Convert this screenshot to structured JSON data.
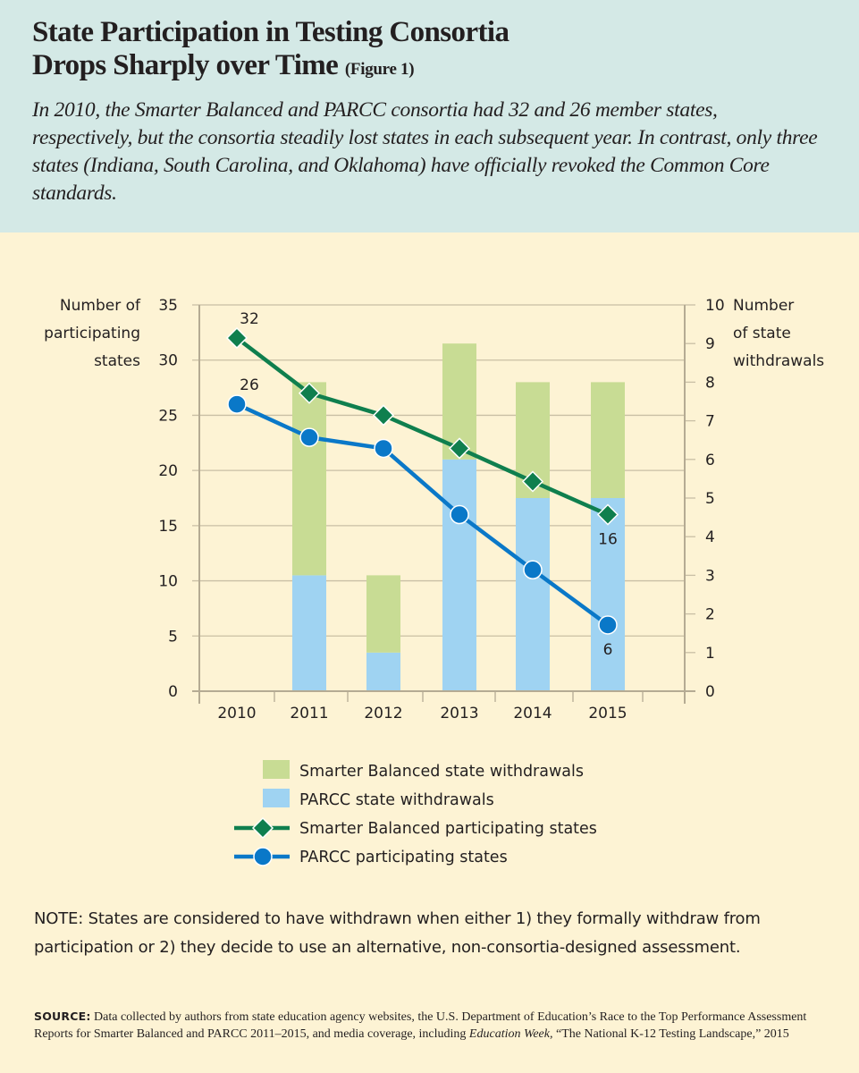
{
  "header": {
    "title_line1": "State Participation in Testing Consortia",
    "title_line2": "Drops Sharply over Time",
    "figure_label": "(Figure 1)",
    "subtitle": "In 2010, the Smarter Balanced and PARCC consortia had 32 and 26 member states, respectively, but the consortia steadily lost states in each subsequent year. In contrast, only three states (Indiana, South Carolina, and Oklahoma) have officially revoked the Common Core standards."
  },
  "colors": {
    "header_bg": "#d4e9e6",
    "body_bg": "#fdf3d4",
    "sb_bar": "#c8dc94",
    "parcc_bar": "#9fd3f2",
    "sb_line": "#0f7f4e",
    "parcc_line": "#0a78c8",
    "grid": "#c9bfa5"
  },
  "chart_data": {
    "type": "bar+line",
    "title": "State Participation in Testing Consortia Drops Sharply over Time",
    "categories": [
      "2010",
      "2011",
      "2012",
      "2013",
      "2014",
      "2015"
    ],
    "left_axis": {
      "label_lines": [
        "Number of",
        "participating",
        "states"
      ],
      "ylim": [
        0,
        35
      ],
      "ticks": [
        "0",
        "5",
        "10",
        "15",
        "20",
        "25",
        "30",
        "35"
      ]
    },
    "right_axis": {
      "label_lines": [
        "Number",
        "of state",
        "withdrawals"
      ],
      "ylim": [
        0,
        10
      ],
      "ticks": [
        "0",
        "1",
        "2",
        "3",
        "4",
        "5",
        "6",
        "7",
        "8",
        "9",
        "10"
      ]
    },
    "grid": true,
    "bar_series": [
      {
        "name": "PARCC state withdrawals",
        "axis": "right",
        "stack_order": 1,
        "values": [
          0,
          3,
          1,
          6,
          5,
          5
        ]
      },
      {
        "name": "Smarter Balanced state withdrawals",
        "axis": "right",
        "stack_order": 2,
        "values": [
          0,
          5,
          2,
          3,
          3,
          3
        ]
      }
    ],
    "line_series": [
      {
        "name": "Smarter Balanced participating states",
        "axis": "left",
        "marker": "diamond",
        "values": [
          32,
          27,
          25,
          22,
          19,
          16
        ]
      },
      {
        "name": "PARCC participating states",
        "axis": "left",
        "marker": "circle",
        "values": [
          26,
          23,
          22,
          16,
          11,
          6
        ]
      }
    ],
    "annotations": [
      {
        "series": "Smarter Balanced participating states",
        "category": "2010",
        "text": "32",
        "position": "above"
      },
      {
        "series": "PARCC participating states",
        "category": "2010",
        "text": "26",
        "position": "above"
      },
      {
        "series": "Smarter Balanced participating states",
        "category": "2015",
        "text": "16",
        "position": "below"
      },
      {
        "series": "PARCC participating states",
        "category": "2015",
        "text": "6",
        "position": "below"
      }
    ],
    "legend": {
      "placement": "bottom-center",
      "entries": [
        {
          "label": "Smarter Balanced state withdrawals",
          "kind": "swatch",
          "color_key": "sb_bar"
        },
        {
          "label": "PARCC state withdrawals",
          "kind": "swatch",
          "color_key": "parcc_bar"
        },
        {
          "label": "Smarter Balanced participating states",
          "kind": "line-diamond",
          "color_key": "sb_line"
        },
        {
          "label": "PARCC participating states",
          "kind": "line-circle",
          "color_key": "parcc_line"
        }
      ]
    }
  },
  "note": "NOTE: States are considered to have withdrawn when either 1) they formally withdraw from participation or 2) they decide to use an alternative, non-consortia-designed assessment.",
  "source": {
    "label": "SOURCE:",
    "text_before": " Data collected by authors from state education agency websites, the U.S. Department of Education’s Race to the Top Performance Assessment Reports for Smarter Balanced and PARCC 2011–2015, and media coverage, including ",
    "italic": "Education Week,",
    "text_after": " “The National K-12 Testing Landscape,” 2015"
  }
}
